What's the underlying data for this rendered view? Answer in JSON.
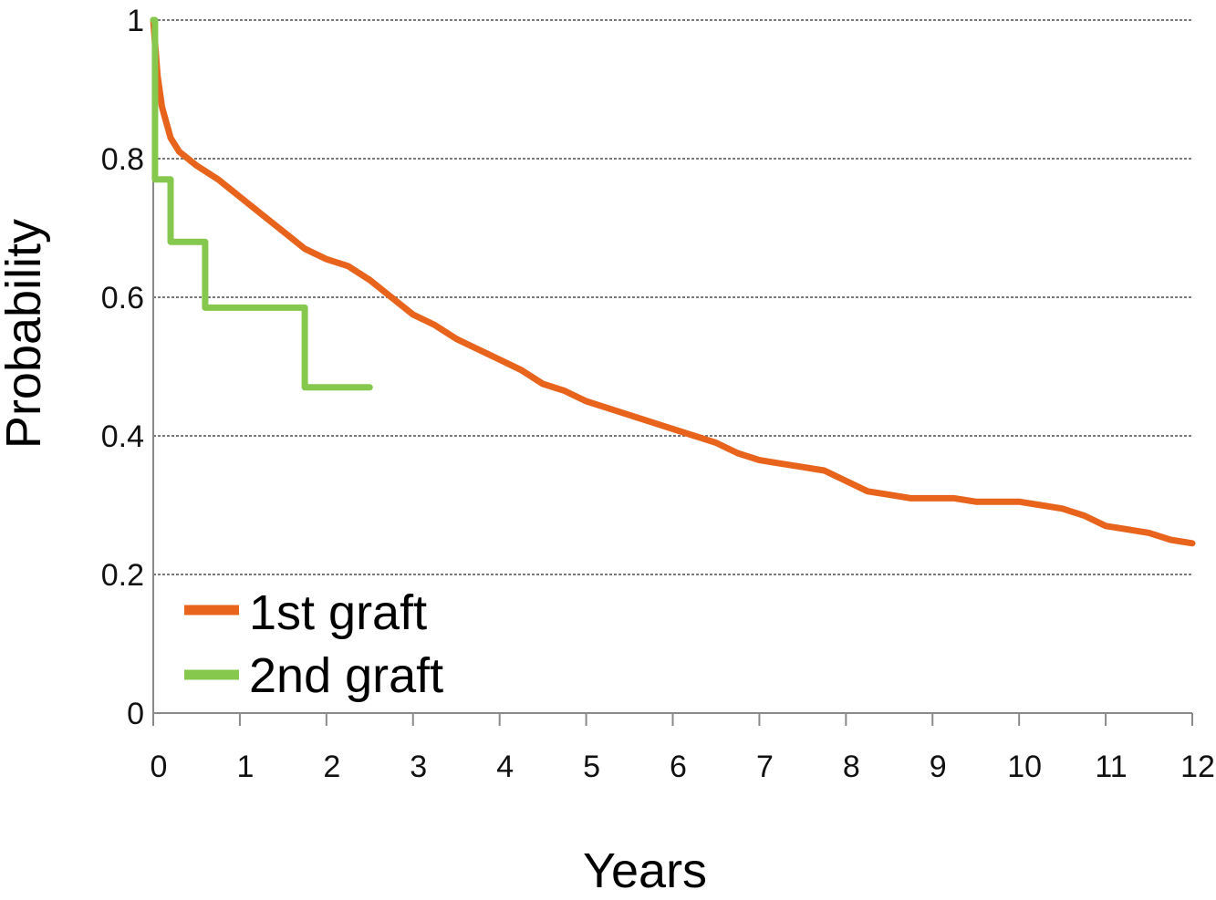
{
  "chart_data": {
    "type": "line",
    "title": "",
    "xlabel": "Years",
    "ylabel": "Probability",
    "xlim": [
      0,
      12
    ],
    "ylim": [
      0,
      1
    ],
    "x_ticks": [
      "0",
      "1",
      "2",
      "3",
      "4",
      "5",
      "6",
      "7",
      "8",
      "9",
      "10",
      "11",
      "12"
    ],
    "y_ticks": [
      "0",
      "0.2",
      "0.4",
      "0.6",
      "0.8",
      "1"
    ],
    "grid": "horizontal",
    "legend_position": "bottom-left",
    "series": [
      {
        "name": "1st graft",
        "color": "#e8641c",
        "step": false,
        "x": [
          0,
          0.05,
          0.1,
          0.2,
          0.3,
          0.5,
          0.75,
          1.0,
          1.25,
          1.5,
          1.75,
          2.0,
          2.25,
          2.5,
          2.75,
          3.0,
          3.25,
          3.5,
          3.75,
          4.0,
          4.25,
          4.5,
          4.75,
          5.0,
          5.25,
          5.5,
          5.75,
          6.0,
          6.25,
          6.5,
          6.75,
          7.0,
          7.25,
          7.5,
          7.75,
          8.0,
          8.25,
          8.5,
          8.75,
          9.0,
          9.25,
          9.5,
          9.75,
          10.0,
          10.25,
          10.5,
          10.75,
          11.0,
          11.25,
          11.5,
          11.75,
          12.0
        ],
        "y": [
          1.0,
          0.92,
          0.875,
          0.83,
          0.81,
          0.79,
          0.77,
          0.745,
          0.72,
          0.695,
          0.67,
          0.655,
          0.645,
          0.625,
          0.6,
          0.575,
          0.56,
          0.54,
          0.525,
          0.51,
          0.495,
          0.475,
          0.465,
          0.45,
          0.44,
          0.43,
          0.42,
          0.41,
          0.4,
          0.39,
          0.375,
          0.365,
          0.36,
          0.355,
          0.35,
          0.335,
          0.32,
          0.315,
          0.31,
          0.31,
          0.31,
          0.305,
          0.305,
          0.305,
          0.3,
          0.295,
          0.285,
          0.27,
          0.265,
          0.26,
          0.25,
          0.245
        ]
      },
      {
        "name": "2nd graft",
        "color": "#86c84e",
        "step": true,
        "x": [
          0,
          0.02,
          0.2,
          0.6,
          1.75,
          2.5
        ],
        "y": [
          1.0,
          0.77,
          0.68,
          0.585,
          0.47,
          0.47
        ]
      }
    ]
  }
}
